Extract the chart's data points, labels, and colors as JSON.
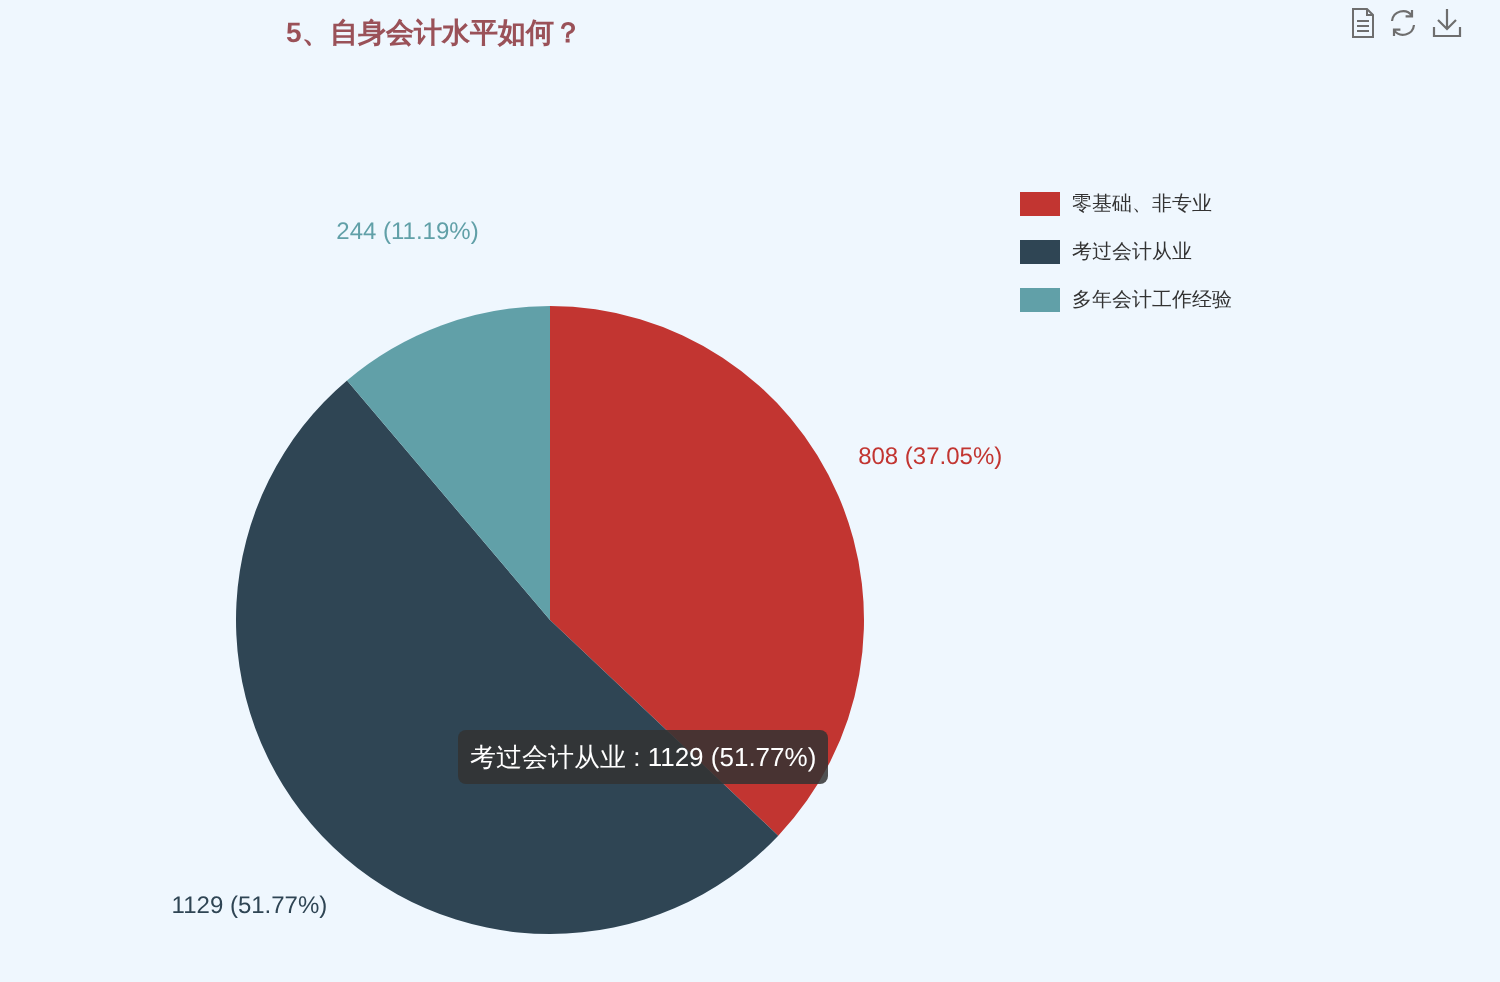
{
  "chart_data": {
    "type": "pie",
    "title": "5、自身会计水平如何？",
    "categories": [
      "零基础、非专业",
      "考过会计从业",
      "多年会计工作经验"
    ],
    "values": [
      808,
      1129,
      244
    ],
    "colors": [
      "#c23531",
      "#2f4554",
      "#61a0a8"
    ],
    "value_labels": [
      "808 (37.05%)",
      "1129 (51.77%)",
      "244 (11.19%)"
    ],
    "legend": "top right",
    "annotations": [
      "考过会计从业 : 1129 (51.77%)"
    ]
  }
}
